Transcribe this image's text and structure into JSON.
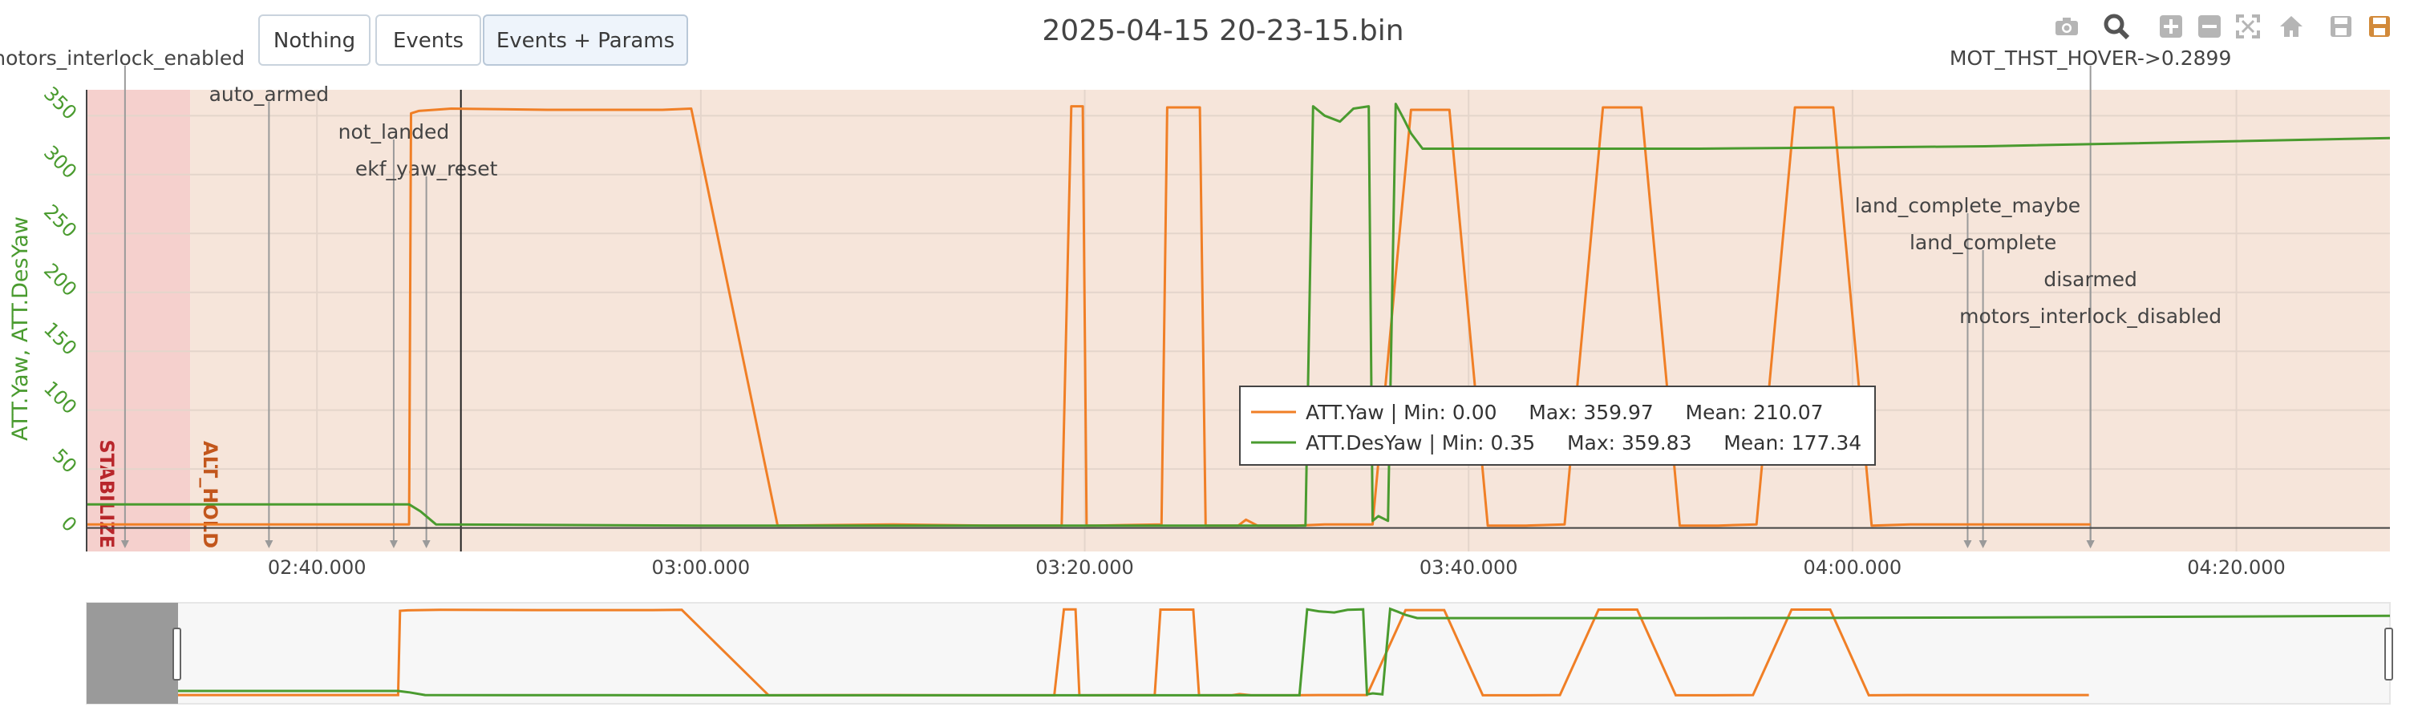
{
  "buttons": [
    {
      "label": "Nothing",
      "active": false
    },
    {
      "label": "Events",
      "active": false
    },
    {
      "label": "Events + Params",
      "active": true
    }
  ],
  "modebar": [
    "camera-icon",
    "zoom-icon",
    "zoom-in-icon",
    "zoom-out-icon",
    "autoscale-icon",
    "home-icon",
    "save-icon",
    "save-alt-icon"
  ],
  "chart_data": {
    "type": "line",
    "title": "2025-04-15 20-23-15.bin",
    "ylabel": "ATT.Yaw, ATT.DesYaw",
    "xlim": [
      "02:28.0",
      "04:28.0"
    ],
    "ylim": [
      -20,
      372
    ],
    "yticks": [
      0,
      50,
      100,
      150,
      200,
      250,
      300,
      350
    ],
    "xticks": [
      {
        "t": 160,
        "label": "02:40.000"
      },
      {
        "t": 180,
        "label": "03:00.000"
      },
      {
        "t": 200,
        "label": "03:20.000"
      },
      {
        "t": 220,
        "label": "03:40.000"
      },
      {
        "t": 240,
        "label": "04:00.000"
      },
      {
        "t": 260,
        "label": "04:20.000"
      }
    ],
    "grid": true,
    "legend_position": "center-right",
    "legend": [
      {
        "name": "ATT.Yaw",
        "text": "ATT.Yaw | Min: 0.00     Max: 359.97     Mean: 210.07",
        "color": "#f07f26"
      },
      {
        "name": "ATT.DesYaw",
        "text": "ATT.DesYaw | Min: 0.35     Max: 359.83     Mean: 177.34",
        "color": "#4a9b2f"
      }
    ],
    "modes": [
      {
        "name": "STABILIZE",
        "start": 148.0,
        "end": 153.4,
        "color": "#f5d0cd",
        "label_color": "#b8262b"
      },
      {
        "name": "ALT_HOLD",
        "start": 153.4,
        "end": 268.0,
        "color": "#f6e5da",
        "label_color": "#c2561c"
      }
    ],
    "events": [
      {
        "label": "motors_interlock_enabled",
        "t": 150.0,
        "label_t": 149.5,
        "row": 0
      },
      {
        "label": "auto_armed",
        "t": 157.5,
        "label_t": 157.5,
        "row": 1
      },
      {
        "label": "not_landed",
        "t": 164.0,
        "label_t": 164.0,
        "row": 2
      },
      {
        "label": "ekf_yaw_reset",
        "t": 165.7,
        "label_t": 165.7,
        "row": 3
      },
      {
        "label": "MOT_THST_HOVER->0.2899",
        "t": 252.4,
        "label_t": 252.4,
        "row": 0
      },
      {
        "label": "land_complete_maybe",
        "t": 246.0,
        "label_t": 246.0,
        "row": 4
      },
      {
        "label": "land_complete",
        "t": 246.8,
        "label_t": 246.8,
        "row": 5
      },
      {
        "label": "disarmed",
        "t": 252.4,
        "label_t": 252.4,
        "row": 6
      },
      {
        "label": "motors_interlock_disabled",
        "t": 252.4,
        "label_t": 252.4,
        "row": 7
      }
    ],
    "cursor_t": 167.5,
    "series": [
      {
        "name": "ATT.Yaw",
        "color": "#f07f26",
        "x": [
          148,
          164.8,
          164.9,
          165.3,
          167,
          172,
          178,
          179.5,
          184,
          190,
          195,
          198.8,
          199.3,
          199.9,
          200.1,
          200.5,
          204,
          204.3,
          206,
          206.3,
          208,
          208.4,
          209,
          210,
          210.3,
          211,
          212.5,
          213,
          215,
          217,
          219,
          221,
          223,
          225,
          227,
          229,
          231,
          233,
          235,
          237,
          239,
          241,
          243,
          246,
          248,
          250,
          252.4
        ],
        "y": [
          3,
          3,
          352,
          354,
          356,
          355,
          355,
          356,
          2,
          3,
          2,
          2,
          358,
          358,
          2,
          2,
          3,
          357,
          357,
          2,
          2,
          7,
          2,
          2,
          2,
          2,
          3,
          3,
          3,
          355,
          355,
          2,
          2,
          3,
          357,
          357,
          2,
          2,
          3,
          357,
          357,
          2,
          3,
          3,
          3,
          3,
          3
        ]
      },
      {
        "name": "ATT.DesYaw",
        "color": "#4a9b2f",
        "x": [
          148,
          164.8,
          165.4,
          166.2,
          180,
          196,
          211.5,
          211.9,
          212.5,
          213.3,
          214,
          214.8,
          215,
          215.3,
          215.8,
          216.2,
          216.6,
          217,
          217.6,
          218,
          222,
          232,
          240,
          246.9,
          268
        ],
        "y": [
          20,
          20,
          14,
          3,
          2,
          2,
          2,
          358,
          350,
          345,
          356,
          358,
          6,
          10,
          6,
          360,
          348,
          335,
          322,
          322,
          322,
          322,
          323,
          324,
          331
        ]
      }
    ]
  }
}
